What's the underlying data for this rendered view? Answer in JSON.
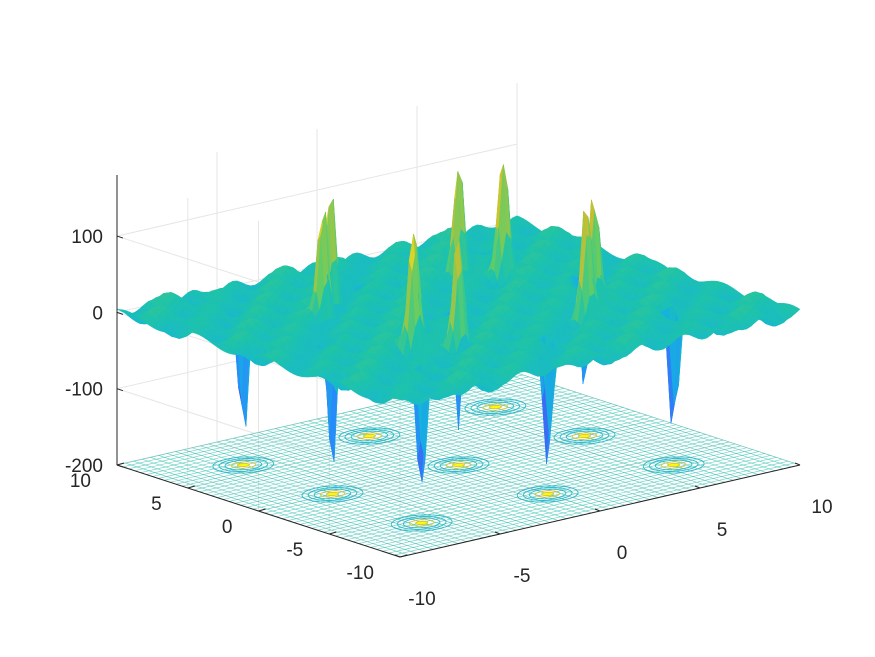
{
  "chart_data": {
    "type": "surface",
    "title": "",
    "xlabel": "",
    "ylabel": "",
    "zlabel": "",
    "x_range": [
      -10,
      10
    ],
    "y_range": [
      -10,
      10
    ],
    "z_range": [
      -200,
      180
    ],
    "x_ticks": [
      "-10",
      "-5",
      "0",
      "5",
      "10"
    ],
    "y_ticks": [
      "-10",
      "-5",
      "0",
      "5",
      "10"
    ],
    "z_ticks": [
      "-200",
      "-100",
      "0",
      "100"
    ],
    "grid": true,
    "colormap": "parula",
    "contour_projection_on_floor": true,
    "peaks": [
      {
        "x": -6.3,
        "y": -6.3,
        "z": -185
      },
      {
        "x": -6.3,
        "y": 0.0,
        "z": -180
      },
      {
        "x": -6.3,
        "y": 6.3,
        "z": -170
      },
      {
        "x": 0.0,
        "y": -6.3,
        "z": -175
      },
      {
        "x": 0.0,
        "y": 0.0,
        "z": -160
      },
      {
        "x": 0.0,
        "y": 6.3,
        "z": -150
      },
      {
        "x": 6.3,
        "y": -6.3,
        "z": -165
      },
      {
        "x": 6.3,
        "y": 0.0,
        "z": -150
      },
      {
        "x": 6.3,
        "y": 6.3,
        "z": -140
      },
      {
        "x": -4.5,
        "y": -3.2,
        "z": 165
      },
      {
        "x": -3.2,
        "y": -4.5,
        "z": 165
      },
      {
        "x": -4.5,
        "y": 3.2,
        "z": 160
      },
      {
        "x": -3.2,
        "y": 4.5,
        "z": 160
      },
      {
        "x": 3.2,
        "y": -4.5,
        "z": 160
      },
      {
        "x": 4.5,
        "y": -3.2,
        "z": 160
      },
      {
        "x": 3.2,
        "y": 4.5,
        "z": 165
      },
      {
        "x": 4.5,
        "y": 3.2,
        "z": 165
      }
    ],
    "colors": {
      "low": "#3e26a8",
      "mid": "#20b4b4",
      "high": "#f9fb0e",
      "axis": "#262626",
      "grid": "#e6e6e6"
    }
  }
}
